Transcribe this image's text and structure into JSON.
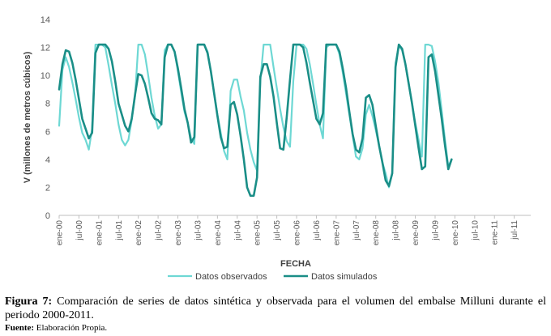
{
  "chart_data": {
    "type": "line",
    "title": "",
    "xlabel": "FECHA",
    "ylabel": "V (millones de metros cúbicos)",
    "ylim": [
      0,
      14
    ],
    "yticks": [
      0,
      2,
      4,
      6,
      8,
      10,
      12,
      14
    ],
    "grid": false,
    "legend_position": "bottom",
    "x_start": "ene-00",
    "x_tick_labels": [
      "ene-00",
      "jul-00",
      "ene-01",
      "jul-01",
      "ene-02",
      "jul-02",
      "ene-03",
      "jul-03",
      "ene-04",
      "jul-04",
      "ene-05",
      "jul-05",
      "ene-06",
      "jul-06",
      "ene-07",
      "jul-07",
      "ene-08",
      "jul-08",
      "ene-09",
      "jul-09",
      "ene-10",
      "jul-10",
      "ene-11",
      "jul-11"
    ],
    "series": [
      {
        "name": "Datos observados",
        "color": "#6ed8d4",
        "values": [
          6.4,
          10.4,
          11.3,
          10.6,
          9.5,
          8.3,
          7.0,
          5.9,
          5.4,
          4.7,
          6.2,
          12.2,
          12.2,
          12.2,
          12.0,
          10.7,
          9.3,
          8.0,
          6.5,
          5.4,
          5.0,
          5.4,
          6.8,
          8.5,
          12.2,
          12.2,
          11.5,
          10.0,
          8.4,
          7.1,
          6.2,
          6.5,
          11.8,
          12.2,
          12.2,
          11.7,
          10.3,
          8.8,
          7.4,
          6.6,
          5.5,
          5.1,
          12.2,
          12.2,
          12.2,
          11.7,
          10.3,
          8.7,
          7.2,
          5.9,
          4.6,
          4.0,
          8.9,
          9.7,
          9.7,
          8.5,
          7.5,
          5.9,
          4.7,
          3.8,
          3.2,
          9.6,
          12.2,
          12.2,
          12.2,
          10.6,
          9.1,
          7.6,
          6.3,
          5.3,
          4.9,
          9.6,
          12.2,
          12.2,
          12.2,
          11.9,
          10.8,
          9.4,
          7.9,
          6.5,
          5.5,
          12.0,
          12.2,
          12.2,
          12.2,
          11.5,
          10.2,
          8.7,
          7.2,
          5.7,
          4.2,
          4.0,
          4.8,
          7.2,
          7.9,
          7.1,
          6.1,
          5.0,
          3.8,
          3.0,
          2.0,
          3.0,
          10.9,
          12.1,
          11.8,
          10.8,
          9.4,
          8.0,
          6.6,
          5.4,
          4.2,
          12.2,
          12.2,
          12.1,
          11.0,
          9.5,
          7.5,
          5.4,
          3.5,
          4.0
        ]
      },
      {
        "name": "Datos simulados",
        "color": "#1a8e87",
        "values": [
          9.0,
          10.8,
          11.8,
          11.7,
          10.9,
          9.7,
          8.3,
          6.9,
          6.2,
          5.5,
          5.9,
          11.6,
          12.2,
          12.2,
          12.2,
          11.9,
          11.0,
          9.6,
          8.0,
          7.2,
          6.4,
          6.0,
          6.9,
          8.6,
          10.1,
          10.0,
          9.4,
          8.4,
          7.3,
          6.9,
          6.8,
          6.5,
          11.3,
          12.2,
          12.2,
          11.7,
          10.5,
          9.1,
          7.6,
          6.6,
          5.2,
          5.6,
          12.2,
          12.2,
          12.2,
          11.6,
          10.3,
          8.7,
          7.1,
          5.6,
          4.8,
          4.9,
          7.9,
          8.1,
          7.2,
          5.7,
          4.0,
          2.0,
          1.4,
          1.4,
          2.7,
          9.9,
          10.8,
          10.8,
          9.9,
          8.5,
          6.6,
          4.8,
          4.7,
          7.0,
          9.7,
          12.2,
          12.2,
          12.2,
          12.0,
          10.9,
          9.5,
          8.2,
          6.9,
          6.5,
          7.3,
          12.2,
          12.2,
          12.2,
          12.2,
          11.7,
          10.5,
          9.1,
          7.4,
          5.8,
          4.7,
          4.5,
          5.5,
          8.4,
          8.6,
          7.9,
          6.4,
          5.0,
          3.8,
          2.5,
          2.1,
          3.0,
          10.6,
          12.2,
          11.9,
          10.8,
          9.4,
          8.0,
          6.4,
          4.8,
          3.3,
          3.5,
          11.3,
          11.5,
          10.3,
          8.6,
          6.9,
          5.0,
          3.3,
          4.0
        ]
      }
    ]
  },
  "caption": {
    "label": "Figura 7:",
    "text": "Comparación de series de datos sintética y observada para el volumen del embalse Milluni durante el periodo 2000-2011."
  },
  "source": {
    "label": "Fuente:",
    "text": "Elaboración Propia."
  }
}
